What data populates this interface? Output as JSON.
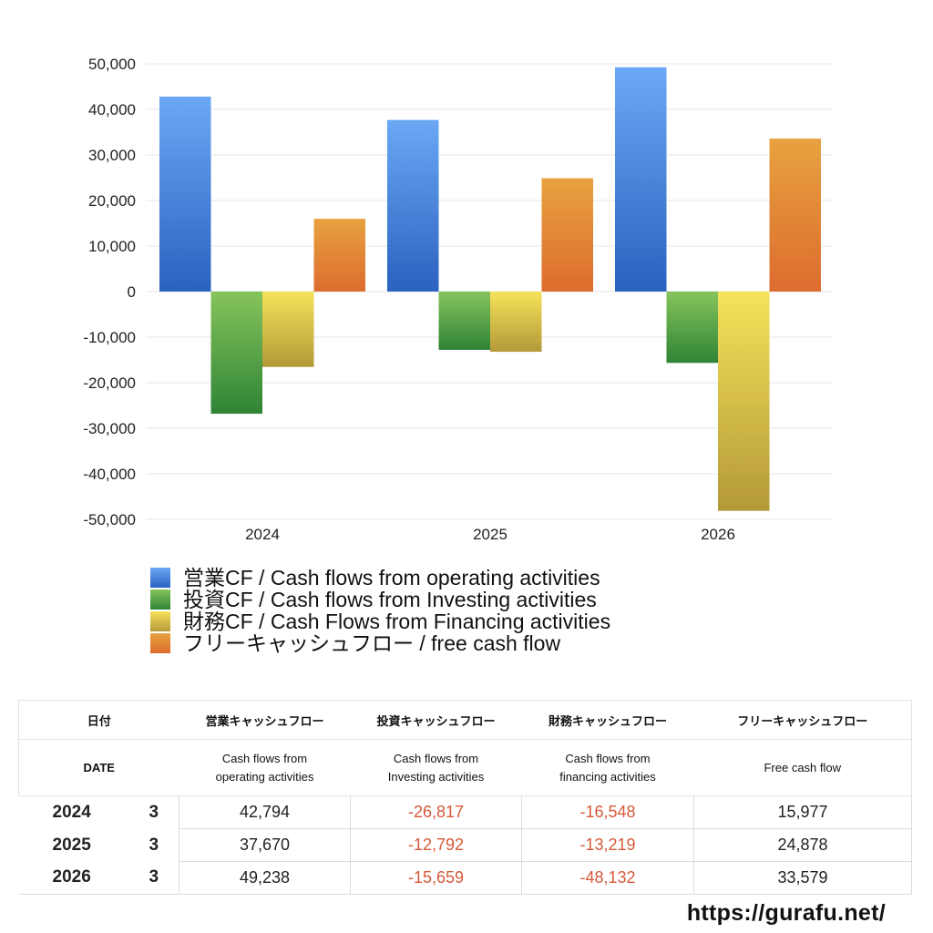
{
  "chart_data": {
    "type": "bar",
    "categories": [
      "2024",
      "2025",
      "2026"
    ],
    "series": [
      {
        "name": "営業CF / Cash flows from operating activities",
        "values": [
          42794,
          37670,
          49238
        ],
        "color_top": "#6aa8f4",
        "color_bottom": "#2a62c0"
      },
      {
        "name": "投資CF / Cash flows from Investing activities",
        "values": [
          -26817,
          -12792,
          -15659
        ],
        "color_top": "#86c45c",
        "color_bottom": "#2f8435"
      },
      {
        "name": "財務CF / Cash Flows from Financing activities",
        "values": [
          -16548,
          -13219,
          -48132
        ],
        "color_top": "#f6e25a",
        "color_bottom": "#b49938"
      },
      {
        "name": "フリーキャッシュフロー / free cash flow",
        "values": [
          15977,
          24878,
          33579
        ],
        "color_top": "#e8a240",
        "color_bottom": "#dc6c2e"
      }
    ],
    "ylim": [
      -50000,
      50000
    ],
    "yticks": [
      50000,
      40000,
      30000,
      20000,
      10000,
      0,
      -10000,
      -20000,
      -30000,
      -40000,
      -50000
    ],
    "ytick_labels": [
      "50,000",
      "40,000",
      "30,000",
      "20,000",
      "10,000",
      "0",
      "-10,000",
      "-20,000",
      "-30,000",
      "-40,000",
      "-50,000"
    ],
    "grid": true,
    "legend_placement": "bottom-left"
  },
  "table": {
    "headers": [
      "日付",
      "営業キャッシュフロー",
      "投資キャッシュフロー",
      "財務キャッシュフロー",
      "フリーキャッシュフロー"
    ],
    "subheaders": {
      "date": "DATE",
      "col1": [
        "Cash flows from",
        "operating activities"
      ],
      "col2": [
        "Cash flows from",
        "Investing activities"
      ],
      "col3": [
        "Cash flows from",
        "financing activities"
      ],
      "col4": [
        "Free cash flow"
      ]
    },
    "rows": [
      {
        "year": "2024",
        "month": "3",
        "values": [
          "42,794",
          "-26,817",
          "-16,548",
          "15,977"
        ]
      },
      {
        "year": "2025",
        "month": "3",
        "values": [
          "37,670",
          "-12,792",
          "-13,219",
          "24,878"
        ]
      },
      {
        "year": "2026",
        "month": "3",
        "values": [
          "49,238",
          "-15,659",
          "-48,132",
          "33,579"
        ]
      }
    ],
    "negative_color": "#d65a3a"
  },
  "footer": {
    "url": "https://gurafu.net/"
  }
}
